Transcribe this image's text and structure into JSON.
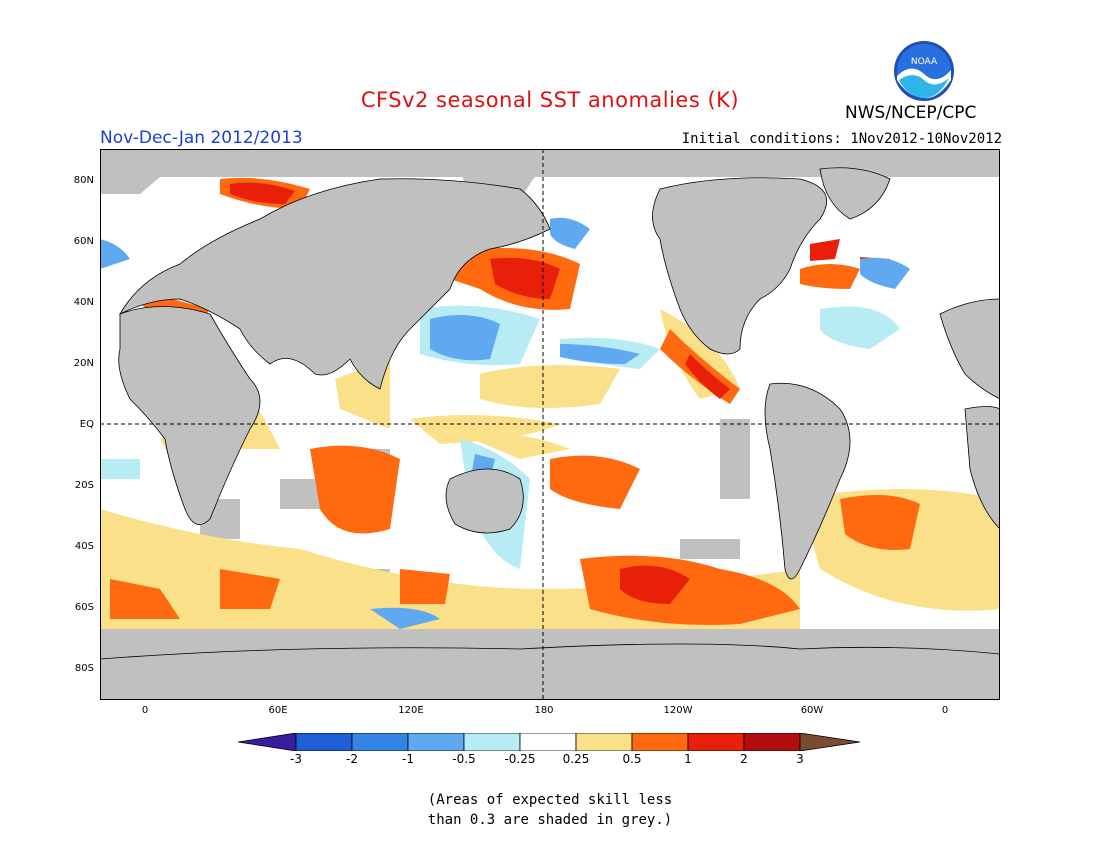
{
  "title": "CFSv2 seasonal SST anomalies (K)",
  "period": "Nov-Dec-Jan 2012/2013",
  "initial_conditions": "Initial conditions: 1Nov2012-10Nov2012",
  "agency": "NWS/NCEP/CPC",
  "logo_text": "NOAA",
  "lat_labels": [
    "80N",
    "60N",
    "40N",
    "20N",
    "EQ",
    "20S",
    "40S",
    "60S",
    "80S"
  ],
  "lon_labels": [
    "0",
    "60E",
    "120E",
    "180",
    "120W",
    "60W",
    "0"
  ],
  "colorbar": {
    "labels": [
      "-3",
      "-2",
      "-1",
      "-0.5",
      "-0.25",
      "0.25",
      "0.5",
      "1",
      "2",
      "3"
    ],
    "colors": [
      "#3a1c9e",
      "#1f5fd6",
      "#3484e8",
      "#5fa9f0",
      "#b8ecf4",
      "#ffffff",
      "#fbe08a",
      "#ff6a10",
      "#e8200a",
      "#b00d0d",
      "#7a4a32"
    ]
  },
  "note_line1": "(Areas of expected skill less",
  "note_line2": "than 0.3 are shaded in grey.)",
  "colors": {
    "land": "#c0c0c0",
    "skill_grey": "#c0c0c0",
    "title": "#e01010",
    "period": "#1a3fd8"
  }
}
